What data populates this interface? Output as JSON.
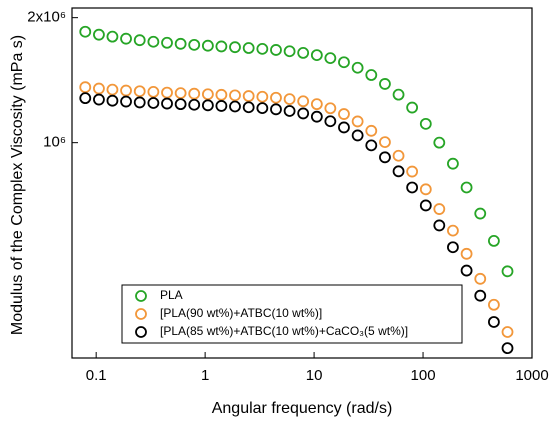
{
  "chart_data": {
    "type": "scatter",
    "xlabel": "Angular frequency (rad/s)",
    "ylabel": "Modulus of the Complex Viscosity (mPa s)",
    "x": [
      0.0794,
      0.106,
      0.141,
      0.188,
      0.251,
      0.335,
      0.447,
      0.596,
      0.794,
      1.06,
      1.41,
      1.88,
      2.51,
      3.35,
      4.47,
      5.96,
      7.94,
      10.6,
      14.1,
      18.8,
      25.1,
      33.5,
      44.7,
      59.6,
      79.4,
      106,
      141,
      188,
      251,
      335,
      447,
      596
    ],
    "series": [
      {
        "name": "PLA",
        "color": "#26a526",
        "values": [
          1850000,
          1820000,
          1800000,
          1780000,
          1765000,
          1750000,
          1740000,
          1730000,
          1720000,
          1712000,
          1705000,
          1698000,
          1690000,
          1682000,
          1672000,
          1660000,
          1645000,
          1625000,
          1598000,
          1562000,
          1515000,
          1455000,
          1385000,
          1305000,
          1215000,
          1110000,
          1000000,
          890000,
          780000,
          675000,
          580000,
          490000
        ]
      },
      {
        "name": "[PLA(90 wt%)+ATBC(10 wt%)]",
        "color": "#f2973a",
        "values": [
          1360000,
          1350000,
          1342000,
          1335000,
          1330000,
          1325000,
          1320000,
          1316000,
          1312000,
          1308000,
          1304000,
          1300000,
          1295000,
          1290000,
          1283000,
          1273000,
          1258000,
          1238000,
          1210000,
          1172000,
          1125000,
          1068000,
          1003000,
          930000,
          852000,
          772000,
          692000,
          614000,
          540000,
          470000,
          407000,
          350000
        ]
      },
      {
        "name": "[PLA(85 wt%)+ATBC(10 wt%)+CaCO₃(5 wt%)]",
        "color": "#000000",
        "values": [
          1280000,
          1270000,
          1262000,
          1256000,
          1250000,
          1246000,
          1242000,
          1238000,
          1234000,
          1230000,
          1226000,
          1222000,
          1217000,
          1211000,
          1203000,
          1192000,
          1176000,
          1155000,
          1126000,
          1088000,
          1041000,
          985000,
          922000,
          853000,
          780000,
          706000,
          632000,
          560000,
          492000,
          428000,
          370000,
          320000
        ]
      }
    ],
    "xlog": true,
    "ylog": true,
    "xlim": [
      0.06,
      1000
    ],
    "ylim": [
      303000,
      2110000
    ],
    "xticks": [
      0.1,
      1,
      10,
      100,
      1000
    ],
    "yticks": [
      {
        "value": 1000000,
        "label": "10⁶"
      },
      {
        "value": 2000000,
        "label": "2x10⁶"
      }
    ],
    "legend": "lower left",
    "grid": false
  }
}
